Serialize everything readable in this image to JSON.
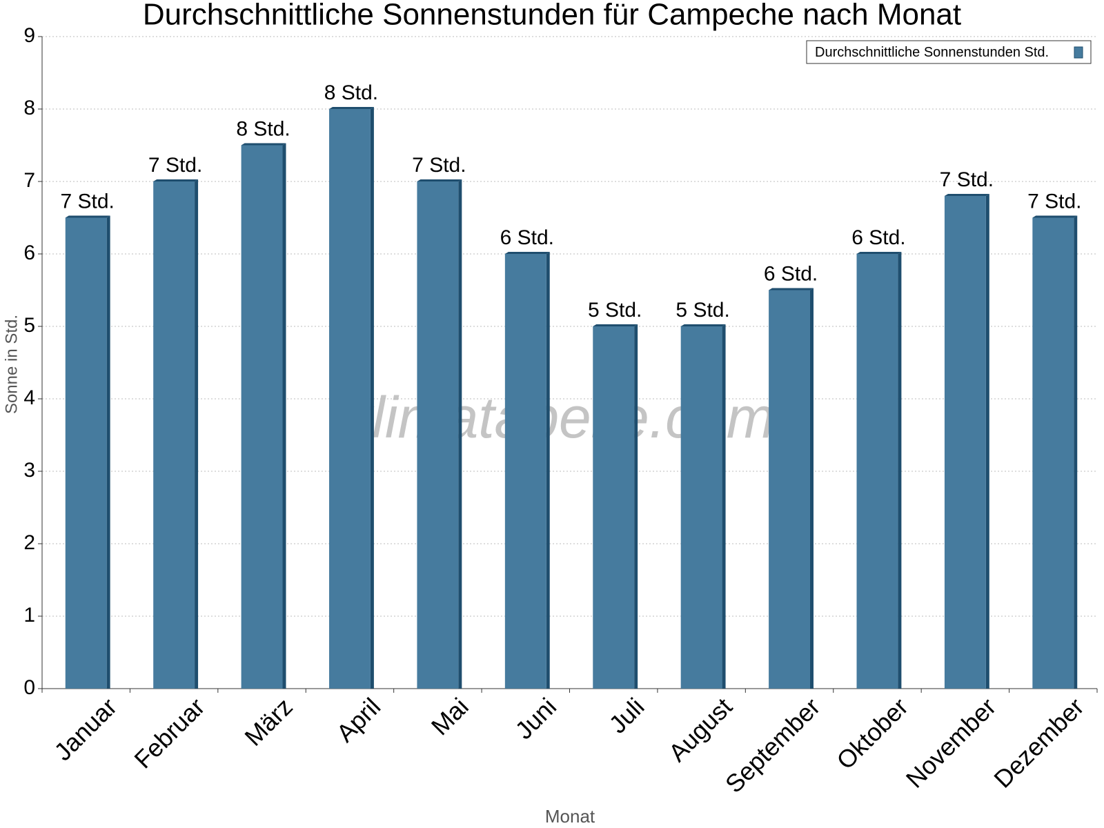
{
  "chart_data": {
    "type": "bar",
    "title": "Durchschnittliche Sonnenstunden für Campeche nach Monat",
    "x_label": "Monat",
    "y_label": "Sonne in Std.",
    "watermark": "klimatabelle.com",
    "categories": [
      "Januar",
      "Februar",
      "März",
      "April",
      "Mai",
      "Juni",
      "Juli",
      "August",
      "September",
      "Oktober",
      "November",
      "Dezember"
    ],
    "series": [
      {
        "name": "Durchschnittliche Sonnenstunden Std.",
        "color": "#467b9e",
        "values": [
          6.5,
          7,
          7.5,
          8,
          7,
          6,
          5,
          5,
          5.5,
          6,
          6.8,
          6.5
        ],
        "value_labels": [
          "7 Std.",
          "7 Std.",
          "8 Std.",
          "8 Std.",
          "7 Std.",
          "6 Std.",
          "5 Std.",
          "5 Std.",
          "6 Std.",
          "6 Std.",
          "7 Std.",
          "7 Std."
        ]
      }
    ],
    "ylim": [
      0,
      9
    ],
    "yticks": [
      0,
      1,
      2,
      3,
      4,
      5,
      6,
      7,
      8,
      9
    ],
    "grid": true,
    "legend": "top-right"
  }
}
